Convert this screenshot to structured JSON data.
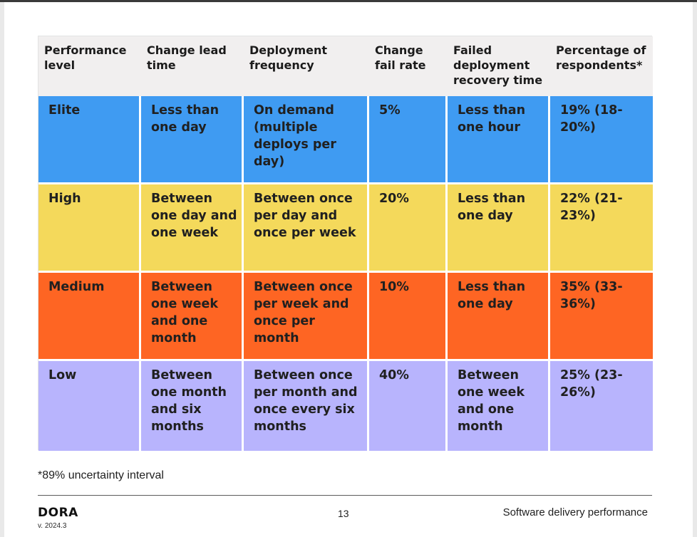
{
  "table": {
    "headers": [
      "Performance level",
      "Change lead time",
      "Deployment frequency",
      "Change fail rate",
      "Failed deployment recovery time",
      "Percentage of respondents*"
    ],
    "rows": [
      {
        "level": "Elite",
        "lead_time": "Less than one day",
        "frequency": "On demand (multiple deploys per day)",
        "fail_rate": "5%",
        "recovery": "Less than one hour",
        "percentage": "19% (18-20%)",
        "color": "#3f9bf2"
      },
      {
        "level": "High",
        "lead_time": "Between one day and one week",
        "frequency": "Between once per day and once per week",
        "fail_rate": "20%",
        "recovery": "Less than one day",
        "percentage": "22% (21-23%)",
        "color": "#f4d95b"
      },
      {
        "level": "Medium",
        "lead_time": "Between one week and one month",
        "frequency": "Between once per week and once per month",
        "fail_rate": "10%",
        "recovery": "Less than one day",
        "percentage": "35% (33-36%)",
        "color": "#fe6523"
      },
      {
        "level": "Low",
        "lead_time": "Between one month and six months",
        "frequency": "Between once per month and once every six months",
        "fail_rate": "40%",
        "recovery": "Between one week and one month",
        "percentage": "25% (23-26%)",
        "color": "#b8b4fd"
      }
    ]
  },
  "footnote": "*89% uncertainty interval",
  "footer": {
    "logo": "DORA",
    "version": "v. 2024.3",
    "page_number": "13",
    "section": "Software delivery performance"
  }
}
